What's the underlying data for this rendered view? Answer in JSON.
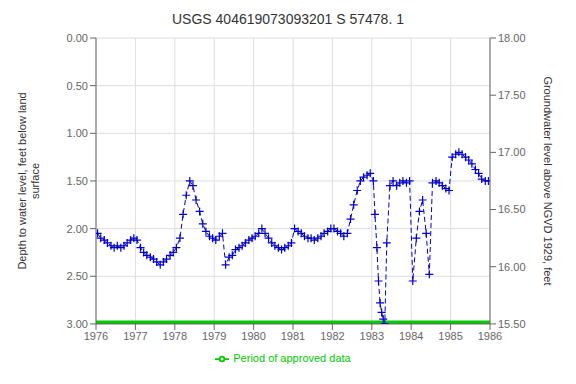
{
  "chart_data": {
    "type": "line",
    "title": "USGS 404619073093201 S 57478. 1",
    "y_label": "Depth to water level, feet below land\nsurface",
    "y2_label": "Groundwater level above NGVD 1929, feet",
    "x": [
      1976.04,
      1976.12,
      1976.21,
      1976.29,
      1976.38,
      1976.46,
      1976.54,
      1976.63,
      1976.71,
      1976.79,
      1976.88,
      1976.96,
      1977.04,
      1977.13,
      1977.21,
      1977.29,
      1977.38,
      1977.46,
      1977.54,
      1977.63,
      1977.71,
      1977.79,
      1977.88,
      1977.96,
      1978.04,
      1978.13,
      1978.21,
      1978.29,
      1978.38,
      1978.46,
      1978.54,
      1978.63,
      1978.71,
      1978.79,
      1978.88,
      1978.96,
      1979.04,
      1979.13,
      1979.21,
      1979.29,
      1979.38,
      1979.46,
      1979.54,
      1979.63,
      1979.71,
      1979.79,
      1979.88,
      1979.96,
      1980.04,
      1980.13,
      1980.21,
      1980.29,
      1980.38,
      1980.46,
      1980.54,
      1980.63,
      1980.71,
      1980.79,
      1980.88,
      1980.96,
      1981.04,
      1981.13,
      1981.21,
      1981.29,
      1981.38,
      1981.46,
      1981.54,
      1981.63,
      1981.71,
      1981.79,
      1981.88,
      1981.96,
      1982.04,
      1982.13,
      1982.21,
      1982.29,
      1982.38,
      1982.46,
      1982.54,
      1982.63,
      1982.71,
      1982.79,
      1982.88,
      1982.96,
      1983.04,
      1983.08,
      1983.13,
      1983.17,
      1983.21,
      1983.25,
      1983.29,
      1983.33,
      1983.38,
      1983.46,
      1983.54,
      1983.63,
      1983.71,
      1983.79,
      1983.88,
      1983.96,
      1984.04,
      1984.13,
      1984.21,
      1984.29,
      1984.38,
      1984.46,
      1984.54,
      1984.63,
      1984.71,
      1984.79,
      1984.88,
      1984.96,
      1985.04,
      1985.13,
      1985.21,
      1985.29,
      1985.38,
      1985.46,
      1985.54,
      1985.63,
      1985.71,
      1985.79,
      1985.88,
      1985.96
    ],
    "series": [
      {
        "color": "#0000CC",
        "marker": "plus",
        "line_style": "dashed",
        "values": [
          2.05,
          2.1,
          2.12,
          2.15,
          2.18,
          2.2,
          2.18,
          2.2,
          2.18,
          2.15,
          2.12,
          2.1,
          2.12,
          2.2,
          2.25,
          2.28,
          2.3,
          2.32,
          2.35,
          2.38,
          2.35,
          2.32,
          2.28,
          2.25,
          2.2,
          2.1,
          1.85,
          1.65,
          1.5,
          1.55,
          1.7,
          1.82,
          1.95,
          2.03,
          2.08,
          2.1,
          2.12,
          2.08,
          2.05,
          2.38,
          2.3,
          2.28,
          2.22,
          2.2,
          2.18,
          2.15,
          2.12,
          2.1,
          2.08,
          2.05,
          2.0,
          2.05,
          2.1,
          2.15,
          2.18,
          2.2,
          2.22,
          2.2,
          2.18,
          2.15,
          2.0,
          2.03,
          2.05,
          2.08,
          2.1,
          2.1,
          2.12,
          2.1,
          2.08,
          2.05,
          2.03,
          2.0,
          2.0,
          2.03,
          2.05,
          2.08,
          2.05,
          1.9,
          1.75,
          1.6,
          1.5,
          1.46,
          1.44,
          1.42,
          1.5,
          1.85,
          2.2,
          2.55,
          2.78,
          2.88,
          2.95,
          3.0,
          2.15,
          1.55,
          1.5,
          1.55,
          1.52,
          1.5,
          1.52,
          1.5,
          2.55,
          2.1,
          1.82,
          1.7,
          2.05,
          2.48,
          1.52,
          1.5,
          1.52,
          1.55,
          1.58,
          1.6,
          1.25,
          1.22,
          1.2,
          1.22,
          1.25,
          1.28,
          1.32,
          1.38,
          1.42,
          1.48,
          1.5,
          1.5
        ]
      },
      {
        "name": "Period of approved data",
        "color": "#00CC00",
        "line_style": "solid",
        "x": [
          1976.0,
          1986.0
        ],
        "values": [
          3.0,
          3.0
        ]
      }
    ],
    "xlim": [
      1976.0,
      1986.0
    ],
    "xticks": [
      1976,
      1977,
      1978,
      1979,
      1980,
      1981,
      1982,
      1983,
      1984,
      1985,
      1986
    ],
    "ylim": [
      3.0,
      0.0
    ],
    "yticks": [
      {
        "value": 0.0,
        "label": "0.00"
      },
      {
        "value": 0.5,
        "label": "0.50"
      },
      {
        "value": 1.0,
        "label": "1.00"
      },
      {
        "value": 1.5,
        "label": "1.50"
      },
      {
        "value": 2.0,
        "label": "2.00"
      },
      {
        "value": 2.5,
        "label": "2.50"
      },
      {
        "value": 3.0,
        "label": "3.00"
      }
    ],
    "y2lim": [
      15.5,
      18.0
    ],
    "y2ticks": [
      {
        "value": 18.0,
        "label": "18.00"
      },
      {
        "value": 17.5,
        "label": "17.50"
      },
      {
        "value": 17.0,
        "label": "17.00"
      },
      {
        "value": 16.5,
        "label": "16.50"
      },
      {
        "value": 16.0,
        "label": "16.00"
      },
      {
        "value": 15.5,
        "label": "15.50"
      }
    ],
    "grid": true,
    "legend": "bottom"
  }
}
